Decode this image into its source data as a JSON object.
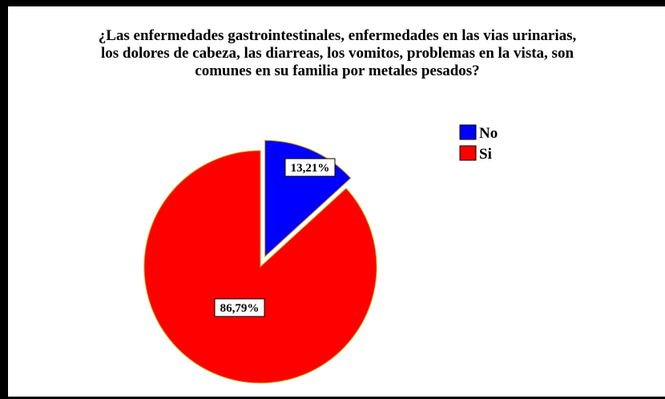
{
  "chart_data": {
    "type": "pie",
    "title_lines": [
      "¿Las enfermedades gastrointestinales, enfermedades en las vias urinarias,",
      "los dolores de cabeza, las diarreas, los vomitos, problemas en la vista, son",
      "comunes en su familia por metales pesados?"
    ],
    "slices": [
      {
        "name": "No",
        "value": 13.21,
        "label": "13,21%",
        "color": "#0000ff",
        "exploded": true
      },
      {
        "name": "Si",
        "value": 86.79,
        "label": "86,79%",
        "color": "#ff0000",
        "exploded": false
      }
    ],
    "legend_position": "top-right",
    "slice_border_color": "#c8a000"
  }
}
